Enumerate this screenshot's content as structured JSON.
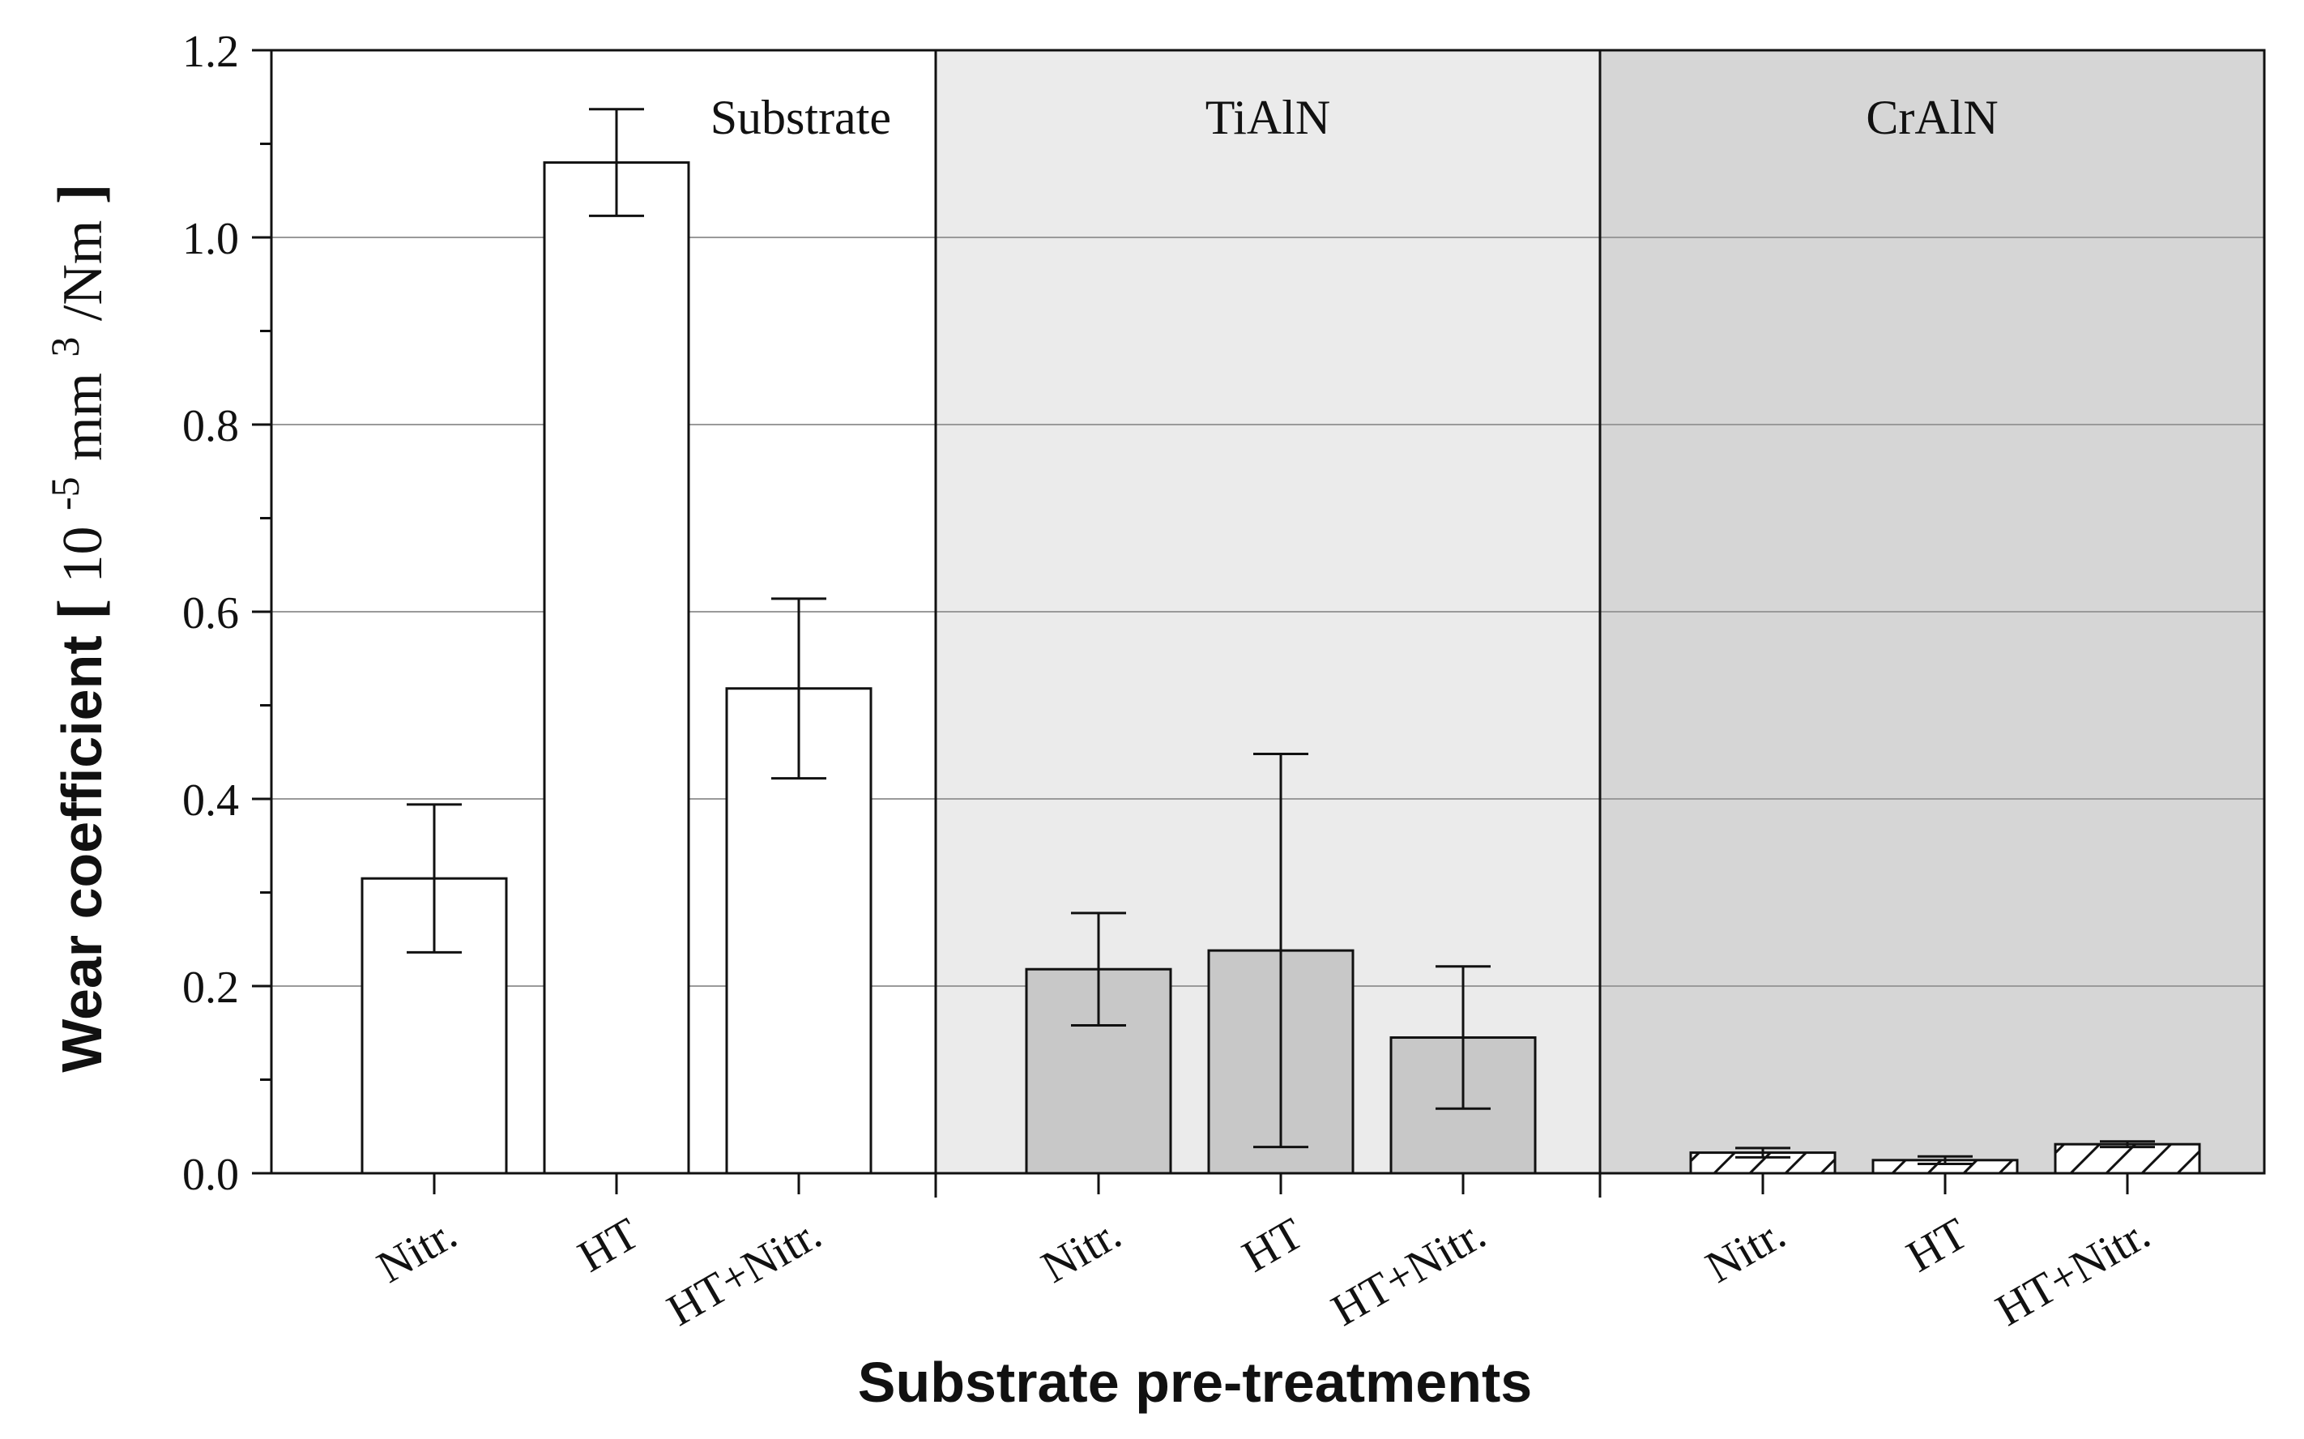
{
  "chart_data": {
    "type": "bar",
    "title": "",
    "xlabel": "Substrate pre-treatments",
    "ylabel": {
      "prefix": "Wear coefficient ",
      "bracket_open": "[",
      "base": "10",
      "exp1": "-5",
      "unit": " mm",
      "exp2": "3",
      "suffix": "/Nm",
      "bracket_close": "]"
    },
    "ylim": [
      0,
      1.2
    ],
    "yticks": [
      "0.0",
      "0.2",
      "0.4",
      "0.6",
      "0.8",
      "1.0",
      "1.2"
    ],
    "ytick_values": [
      0,
      0.2,
      0.4,
      0.6,
      0.8,
      1.0,
      1.2
    ],
    "grid": true,
    "groups": [
      {
        "name": "Substrate",
        "background": "#ffffff",
        "bar_fill": "#ffffff",
        "pattern": "none",
        "categories": [
          "Nitr.",
          "HT",
          "HT+Nitr."
        ],
        "values": [
          0.315,
          1.08,
          0.518
        ],
        "errors": [
          0.079,
          0.057,
          0.096
        ]
      },
      {
        "name": "TiAlN",
        "background": "#ebebeb",
        "bar_fill": "#c8c8c8",
        "pattern": "none",
        "categories": [
          "Nitr.",
          "HT",
          "HT+Nitr."
        ],
        "values": [
          0.218,
          0.238,
          0.145
        ],
        "errors": [
          0.06,
          0.21,
          0.076
        ]
      },
      {
        "name": "CrAlN",
        "background": "#d6d6d6",
        "bar_fill": "#ffffff",
        "pattern": "hatch",
        "categories": [
          "Nitr.",
          "HT",
          "HT+Nitr."
        ],
        "values": [
          0.022,
          0.014,
          0.031
        ],
        "errors": [
          0.005,
          0.004,
          0.003
        ]
      }
    ]
  },
  "colors": {
    "axis": "#111111",
    "grid": "#9a9a9a",
    "bar_edge": "#111111"
  }
}
